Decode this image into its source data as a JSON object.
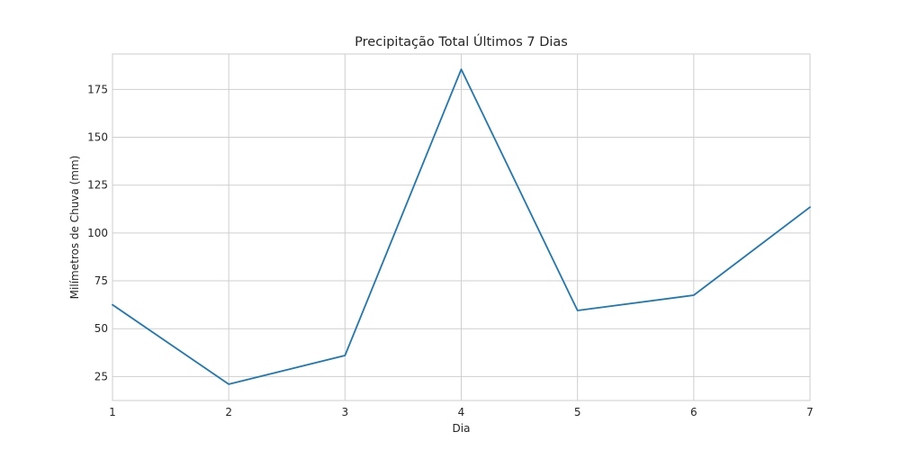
{
  "chart_data": {
    "type": "line",
    "title": "Precipitação Total Últimos 7 Dias",
    "xlabel": "Dia",
    "ylabel": "Milímetros de Chuva (mm)",
    "x": [
      1,
      2,
      3,
      4,
      5,
      6,
      7
    ],
    "xticks": [
      "1",
      "2",
      "3",
      "4",
      "5",
      "6",
      "7"
    ],
    "xlim": [
      1,
      7
    ],
    "yticks": [
      "25",
      "50",
      "75",
      "100",
      "125",
      "150",
      "175"
    ],
    "ylim": [
      12.5,
      193.5
    ],
    "grid": true,
    "series": [
      {
        "values": [
          62.5,
          21,
          36,
          185.5,
          59.5,
          67.5,
          113.5
        ],
        "color": "#1f77b4"
      }
    ]
  }
}
